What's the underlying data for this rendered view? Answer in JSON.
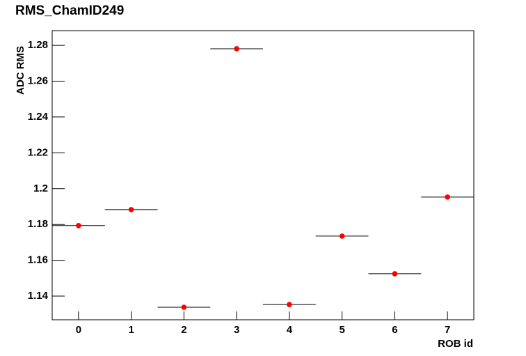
{
  "chart_data": {
    "type": "scatter",
    "title": "RMS_ChamID249",
    "xlabel": "ROB id",
    "ylabel": "ADC RMS",
    "x": [
      0,
      1,
      2,
      3,
      4,
      5,
      6,
      7
    ],
    "xerr": [
      0.5,
      0.5,
      0.5,
      0.5,
      0.5,
      0.5,
      0.5,
      0.5
    ],
    "values": [
      1.1794,
      1.1883,
      1.1338,
      1.2781,
      1.1353,
      1.1735,
      1.1525,
      1.1953
    ],
    "color": "#ff0000",
    "xlim": [
      -0.5,
      7.5
    ],
    "xticks": [
      0,
      1,
      2,
      3,
      4,
      5,
      6,
      7
    ],
    "ylim": [
      1.1268,
      1.2882
    ],
    "yticks": [
      1.14,
      1.16,
      1.18,
      1.2,
      1.22,
      1.24,
      1.26,
      1.28
    ],
    "grid": false
  }
}
